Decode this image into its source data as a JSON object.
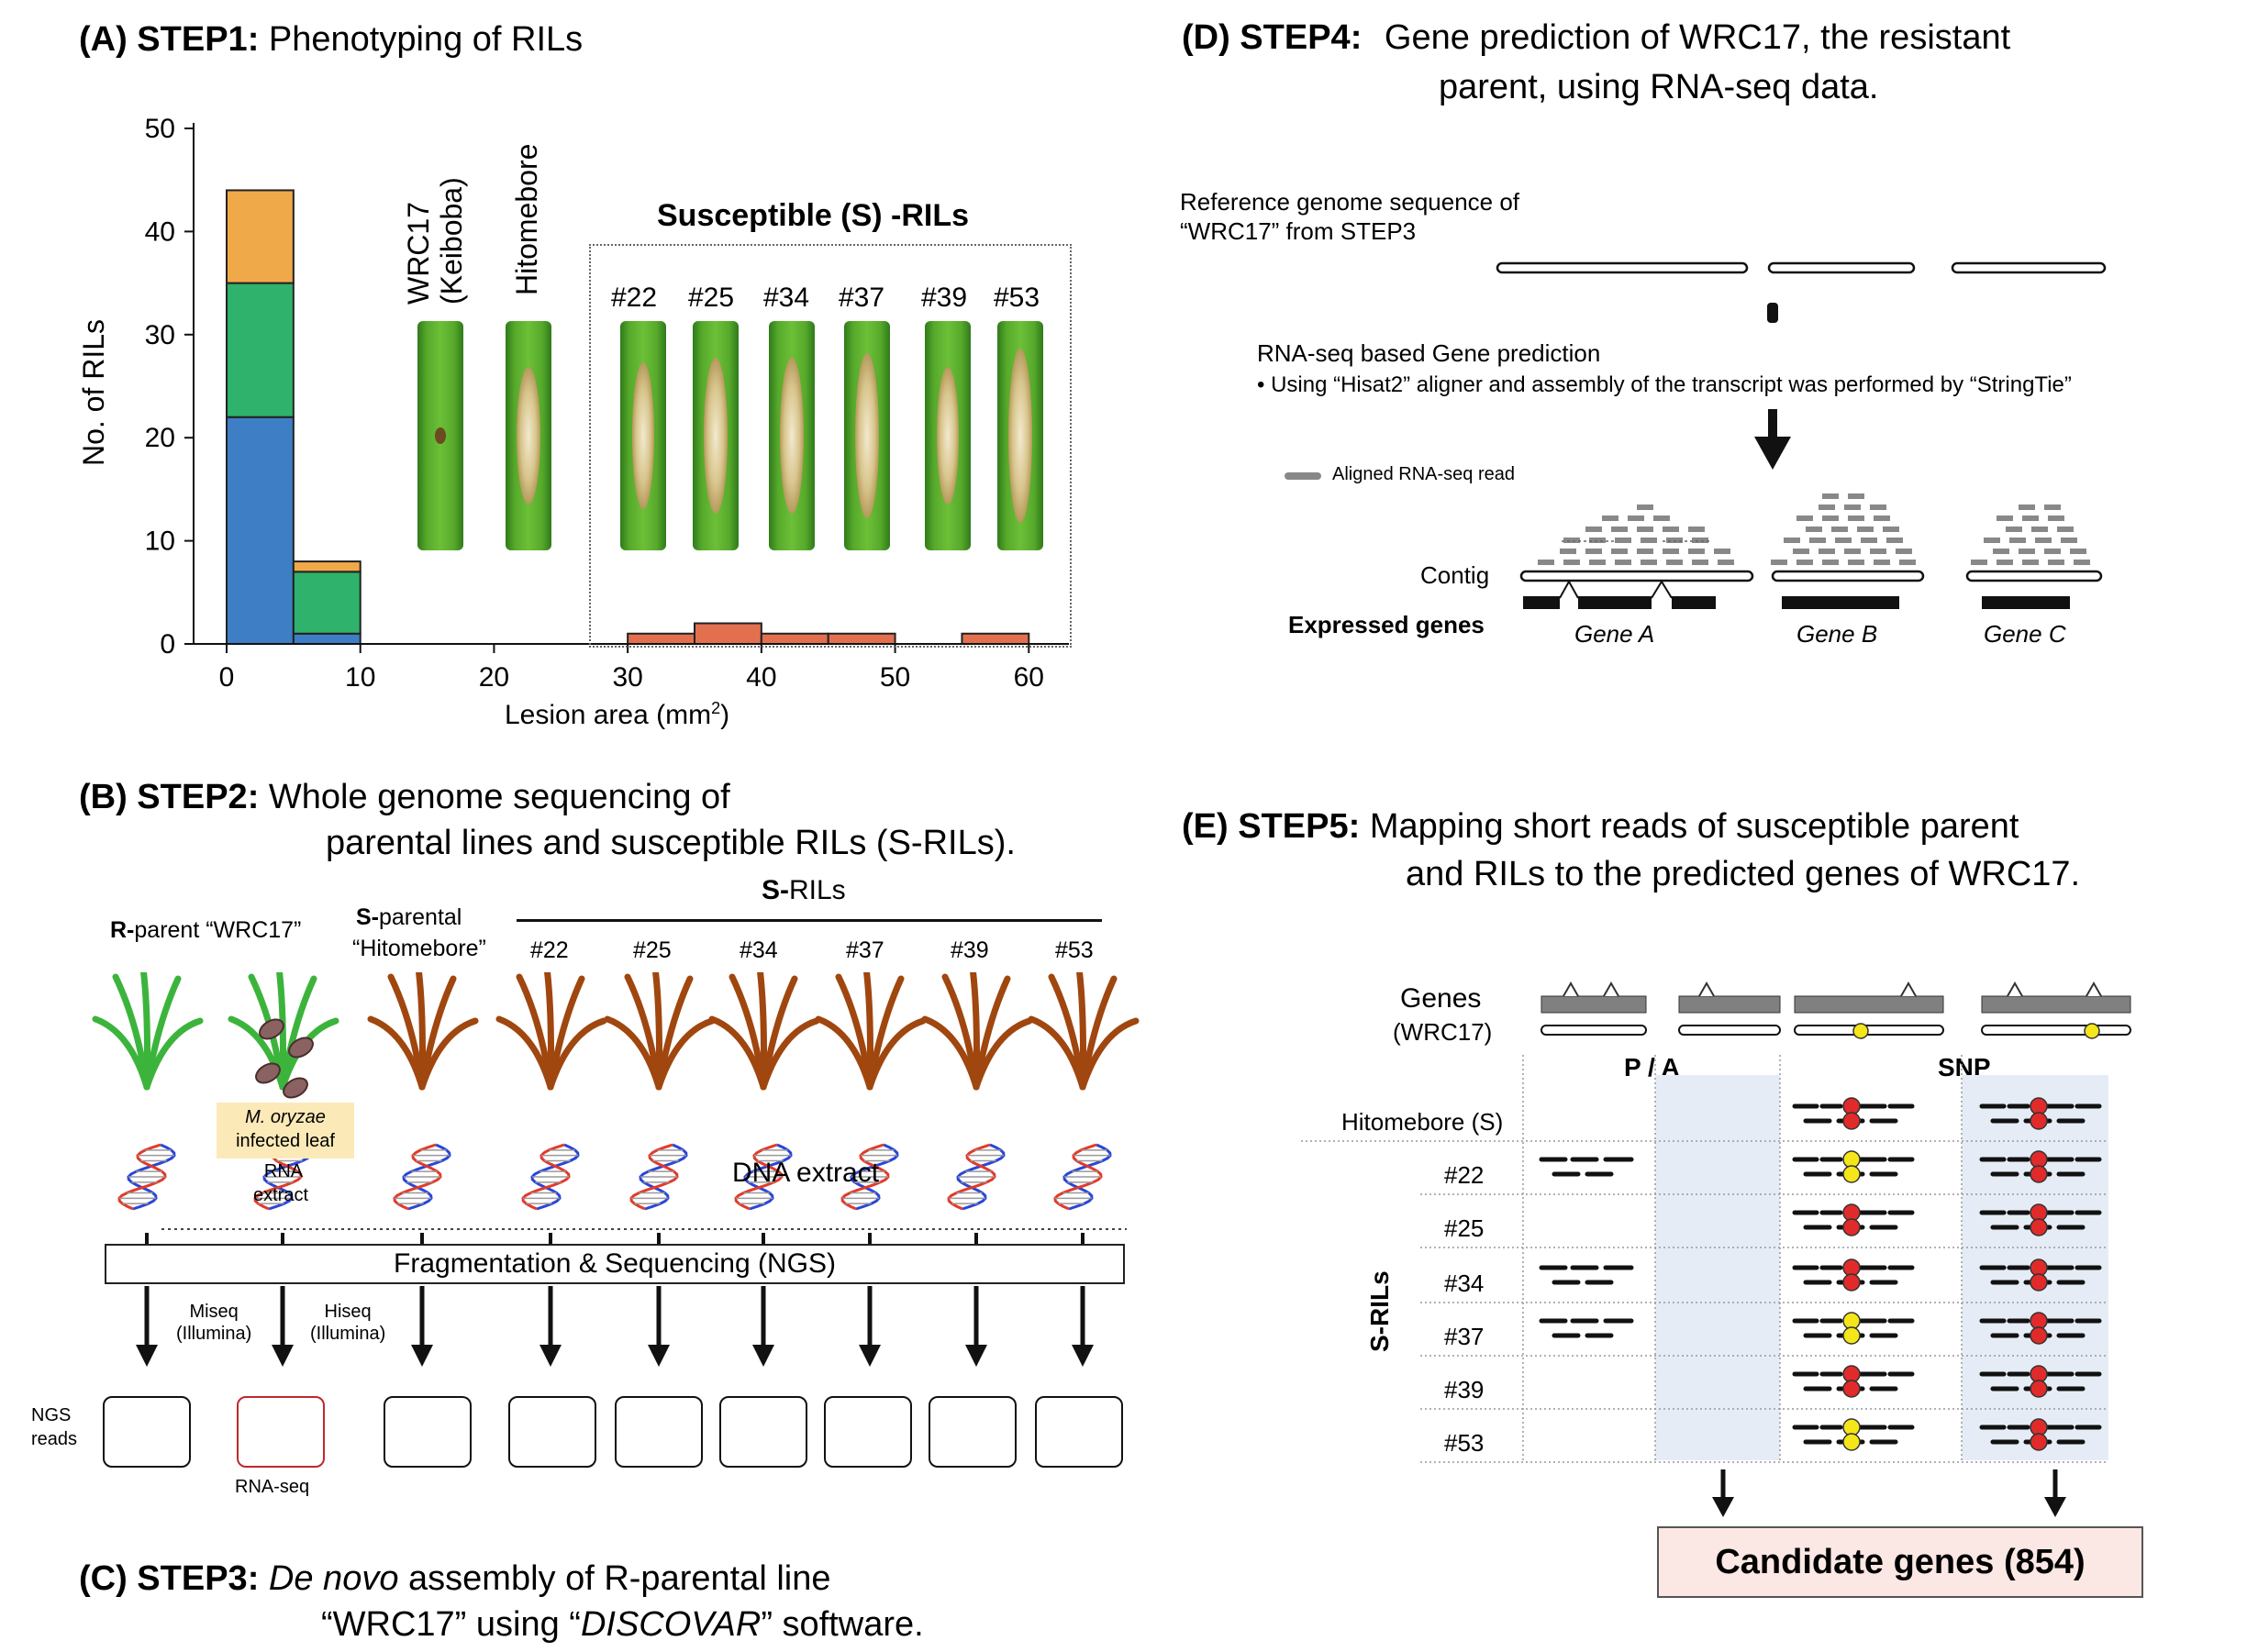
{
  "panelA": {
    "label": "(A) STEP1:",
    "title": "Phenotyping of RILs",
    "ylabel": "No. of RILs",
    "xlabel": "Lesion area (mm",
    "xlabel_sup": "2",
    "xlabel_end": ")",
    "x_ticks": [
      "0",
      "10",
      "20",
      "30",
      "40",
      "50",
      "60"
    ],
    "y_ticks": [
      "0",
      "10",
      "20",
      "30",
      "40",
      "50"
    ],
    "parent_labels": [
      "WRC17",
      "(Keiboba)",
      "Hitomebore"
    ],
    "susceptible_header": "Susceptible (S) -RILs",
    "ril_labels": [
      "#22",
      "#25",
      "#34",
      "#37",
      "#39",
      "#53"
    ]
  },
  "chart_data": {
    "type": "bar",
    "title": "",
    "xlabel": "Lesion area (mm2)",
    "ylabel": "No. of RILs",
    "xlim": [
      0,
      63
    ],
    "ylim": [
      0,
      50
    ],
    "bin_width": 5,
    "bins": [
      0,
      5,
      30,
      35,
      40,
      45,
      55
    ],
    "series": [
      {
        "color": "#3d7ec4",
        "values": [
          22,
          1,
          0,
          0,
          0,
          0,
          0
        ]
      },
      {
        "color": "#2fb26b",
        "values": [
          13,
          6,
          0,
          0,
          0,
          0,
          0
        ]
      },
      {
        "color": "#f0a948",
        "values": [
          9,
          1,
          0,
          0,
          0,
          0,
          0
        ]
      },
      {
        "color": "#e2704f",
        "values": [
          0,
          0,
          1,
          2,
          1,
          1,
          1
        ]
      }
    ]
  },
  "panelB": {
    "label": "(B) STEP2:",
    "title_line1": "Whole genome sequencing of",
    "title_line2": "parental lines and susceptible RILs (S-RILs).",
    "r_parent_bold": "R-",
    "r_parent_rest": "parent “WRC17”",
    "s_parent_bold": "S-",
    "s_parent_rest": "parental",
    "s_parent_name": "“Hitomebore”",
    "srils_bold": "S-",
    "srils_rest": "RILs",
    "ril_labels": [
      "#22",
      "#25",
      "#34",
      "#37",
      "#39",
      "#53"
    ],
    "infected_italic": "M. oryzae",
    "infected_rest": "infected leaf",
    "rna_extract_1": "RNA",
    "rna_extract_2": "extract",
    "dna_extract": "DNA extract",
    "frag_label": "Fragmentation & Sequencing (NGS)",
    "miseq_1": "Miseq",
    "miseq_2": "(Illumina)",
    "hiseq_1": "Hiseq",
    "hiseq_2": "(Illumina)",
    "ngs_1": "NGS",
    "ngs_2": "reads",
    "rnaseq_label": "RNA-seq"
  },
  "panelC": {
    "label": "(C) STEP3:",
    "line1_italic": "De novo",
    "line1_rest": "assembly of R-parental line",
    "line2_a": "“WRC17” using “",
    "line2_italic": "DISCOVAR",
    "line2_b": "” software."
  },
  "panelD": {
    "label": "(D) STEP4:",
    "title_line1": "Gene prediction of WRC17, the resistant",
    "title_line2": "parent, using RNA-seq data.",
    "ref_line1": "Reference genome sequence of",
    "ref_line2": "“WRC17” from STEP3",
    "pred_title": "RNA-seq based Gene prediction",
    "pred_sub": "• Using “Hisat2” aligner and assembly of the transcript was performed by “StringTie”",
    "legend_read": "Aligned RNA-seq read",
    "contig": "Contig",
    "expressed": "Expressed genes",
    "genes": [
      "Gene A",
      "Gene B",
      "Gene C"
    ]
  },
  "panelE": {
    "label": "(E) STEP5:",
    "title_line1": "Mapping short reads of susceptible parent",
    "title_line2": "and RILs to the predicted genes of WRC17.",
    "genes_label": "Genes",
    "genes_sub": "(WRC17)",
    "pa_header": "P / A",
    "snp_header": "SNP",
    "hitomebore": "Hitomebore (S)",
    "srils_side": "S-RILs",
    "rows": [
      "#22",
      "#25",
      "#34",
      "#37",
      "#39",
      "#53"
    ],
    "candidate": "Candidate genes (854)"
  },
  "colors": {
    "blue": "#3d7ec4",
    "green": "#2fb26b",
    "orange": "#f0a948",
    "red_bar": "#e2704f",
    "plant_green": "#3cb43c",
    "plant_brown": "#a0460f",
    "snp_red": "#e12a2a",
    "snp_yellow": "#f5e61a",
    "shade": "#e6ecf6",
    "candidate_bg": "#fbe7e3"
  }
}
